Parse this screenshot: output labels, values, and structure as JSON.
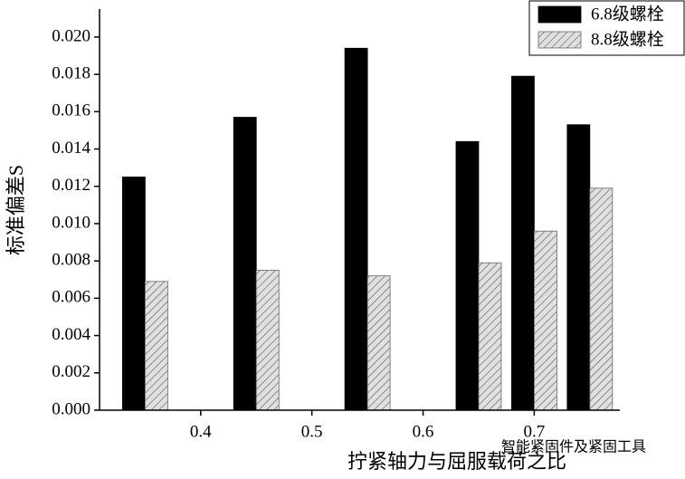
{
  "chart_data": {
    "type": "bar",
    "x_label": "拧紧轴力与屈服载荷之比",
    "y_label": "标准偏差S",
    "watermark": "智能紧固件及紧固工具",
    "x": [
      0.35,
      0.45,
      0.55,
      0.65,
      0.7,
      0.75
    ],
    "series": [
      {
        "name": "6.8级螺栓",
        "color": "#000000",
        "values": [
          0.0125,
          0.0157,
          0.0194,
          0.0144,
          0.0179,
          0.0153
        ]
      },
      {
        "name": "8.8级螺栓",
        "color": "#c8c8c8",
        "pattern": "hatch",
        "values": [
          0.0069,
          0.0075,
          0.0072,
          0.0079,
          0.0096,
          0.0119
        ]
      }
    ],
    "xlim": [
      0.309,
      0.777
    ],
    "xticks": [
      0.4,
      0.5,
      0.6,
      0.7
    ],
    "ylim": [
      0,
      0.0215
    ],
    "yticks": [
      {
        "value": 0,
        "label": "0.000"
      },
      {
        "value": 0.002,
        "label": "0.002"
      },
      {
        "value": 0.004,
        "label": "0.004"
      },
      {
        "value": 0.006,
        "label": "0.006"
      },
      {
        "value": 0.008,
        "label": "0.008"
      },
      {
        "value": 0.01,
        "label": "0.010"
      },
      {
        "value": 0.012,
        "label": "0.012"
      },
      {
        "value": 0.014,
        "label": "0.014"
      },
      {
        "value": 0.016,
        "label": "0.016"
      },
      {
        "value": 0.018,
        "label": "0.018"
      },
      {
        "value": 0.02,
        "label": "0.020"
      }
    ],
    "legend": "top-right",
    "grid": false
  }
}
